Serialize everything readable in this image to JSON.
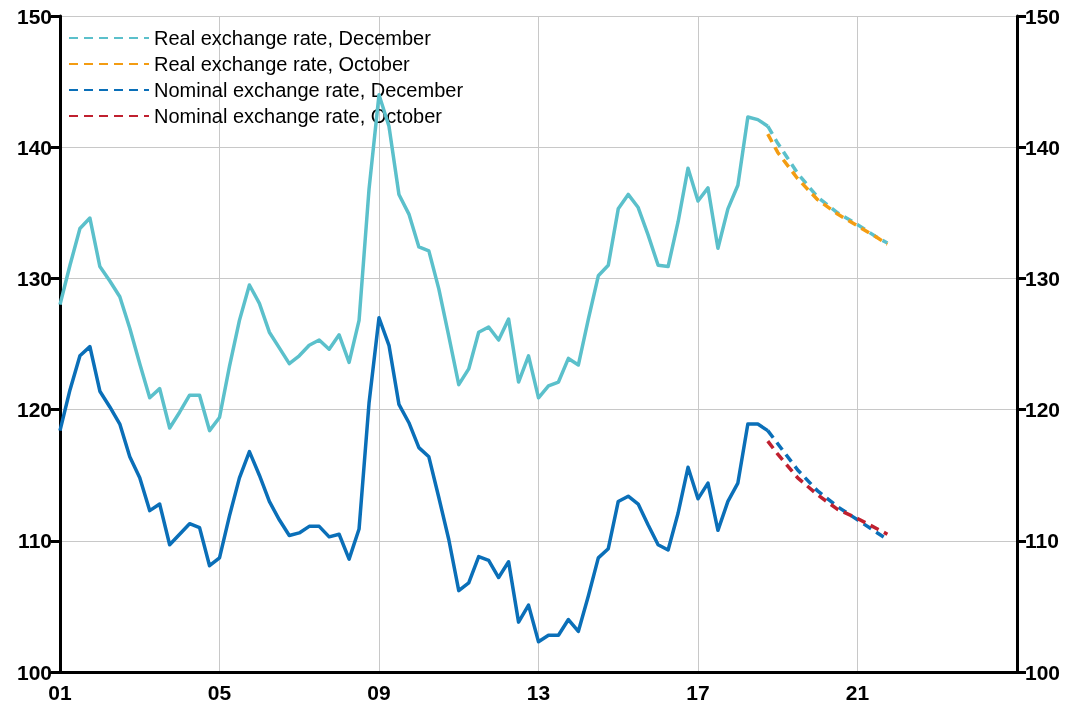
{
  "chart_data": {
    "type": "line",
    "x": [
      2001,
      2001.25,
      2001.5,
      2001.75,
      2002,
      2002.25,
      2002.5,
      2002.75,
      2003,
      2003.25,
      2003.5,
      2003.75,
      2004,
      2004.25,
      2004.5,
      2004.75,
      2005,
      2005.25,
      2005.5,
      2005.75,
      2006,
      2006.25,
      2006.5,
      2006.75,
      2007,
      2007.25,
      2007.5,
      2007.75,
      2008,
      2008.25,
      2008.5,
      2008.75,
      2009,
      2009.25,
      2009.5,
      2009.75,
      2010,
      2010.25,
      2010.5,
      2010.75,
      2011,
      2011.25,
      2011.5,
      2011.75,
      2012,
      2012.25,
      2012.5,
      2012.75,
      2013,
      2013.25,
      2013.5,
      2013.75,
      2014,
      2014.25,
      2014.5,
      2014.75,
      2015,
      2015.25,
      2015.5,
      2015.75,
      2016,
      2016.25,
      2016.5,
      2016.75,
      2017,
      2017.25,
      2017.5,
      2017.75,
      2018,
      2018.25,
      2018.5,
      2018.75
    ],
    "series": [
      {
        "color": "#5bc0cb",
        "line_style": "solid",
        "values": [
          128,
          131,
          133.8,
          134.6,
          130.9,
          129.8,
          128.6,
          126.2,
          123.5,
          120.9,
          121.6,
          118.6,
          119.8,
          121.1,
          121.1,
          118.4,
          119.4,
          123.3,
          126.8,
          129.5,
          128.1,
          125.9,
          124.7,
          123.5,
          124.1,
          124.9,
          125.3,
          124.6,
          125.7,
          123.6,
          126.8,
          136.8,
          144,
          141.6,
          136.4,
          134.9,
          132.4,
          132.1,
          129.2,
          125.6,
          121.9,
          123.1,
          125.9,
          126.3,
          125.3,
          126.9,
          122.1,
          124.1,
          120.9,
          121.8,
          122.1,
          123.9,
          123.4,
          126.9,
          130.2,
          131,
          135.3,
          136.4,
          135.4,
          133.3,
          131,
          130.9,
          134.3,
          138.4,
          135.9,
          136.9,
          132.3,
          135.3,
          137.1,
          142.3,
          142.1,
          141.6
        ]
      },
      {
        "color": "#0a6fb8",
        "line_style": "solid",
        "values": [
          118.4,
          121.5,
          124.1,
          124.8,
          121.4,
          120.2,
          118.9,
          116.4,
          114.8,
          112.3,
          112.8,
          109.7,
          110.5,
          111.3,
          111,
          108.1,
          108.7,
          111.9,
          114.8,
          116.8,
          115,
          113,
          111.6,
          110.4,
          110.6,
          111.1,
          111.1,
          110.3,
          110.5,
          108.6,
          110.9,
          120.5,
          127,
          124.9,
          120.4,
          119,
          117.1,
          116.4,
          113.3,
          110.1,
          106.2,
          106.8,
          108.8,
          108.5,
          107.2,
          108.4,
          103.8,
          105.1,
          102.3,
          102.8,
          102.8,
          104,
          103.1,
          105.8,
          108.7,
          109.4,
          113,
          113.4,
          112.8,
          111.2,
          109.7,
          109.3,
          112.1,
          115.6,
          113.2,
          114.4,
          110.8,
          113,
          114.4,
          118.9,
          118.9,
          118.4
        ]
      },
      {
        "name": "Real exchange rate, December",
        "color": "#5bc0cb",
        "line_style": "dashed",
        "x": [
          2018.75,
          2019,
          2019.5,
          2020,
          2020.5,
          2021,
          2021.5,
          2021.75
        ],
        "values": [
          141.6,
          140.3,
          138,
          136.2,
          135,
          134.1,
          133.1,
          132.7
        ]
      },
      {
        "name": "Real exchange rate, October",
        "color": "#f39c12",
        "line_style": "dashed",
        "x": [
          2018.75,
          2019,
          2019.5,
          2020,
          2020.5,
          2021,
          2021.5,
          2021.75
        ],
        "values": [
          141,
          139.6,
          137.6,
          136,
          134.9,
          134,
          133.1,
          132.6
        ]
      },
      {
        "name": "Nominal exchange rate, December",
        "color": "#0a6fb8",
        "line_style": "dashed",
        "x": [
          2018.75,
          2019,
          2019.5,
          2020,
          2020.5,
          2021,
          2021.5,
          2021.75
        ],
        "values": [
          118.4,
          117.4,
          115.4,
          113.8,
          112.6,
          111.6,
          110.6,
          110.1
        ]
      },
      {
        "name": "Nominal exchange rate, October",
        "color": "#c0202f",
        "line_style": "dashed",
        "x": [
          2018.75,
          2019,
          2019.5,
          2020,
          2020.5,
          2021,
          2021.5,
          2021.75
        ],
        "values": [
          117.6,
          116.6,
          114.8,
          113.5,
          112.4,
          111.7,
          110.9,
          110.5
        ]
      }
    ],
    "xlim": [
      2001,
      2025
    ],
    "xticks": [
      {
        "value": 2001,
        "label": "01"
      },
      {
        "value": 2005,
        "label": "05"
      },
      {
        "value": 2009,
        "label": "09"
      },
      {
        "value": 2013,
        "label": "13"
      },
      {
        "value": 2017,
        "label": "17"
      },
      {
        "value": 2021,
        "label": "21"
      }
    ],
    "ylim": [
      100,
      150
    ],
    "yticks": [
      100,
      110,
      120,
      130,
      140,
      150
    ],
    "y2lim": [
      100,
      150
    ],
    "y2ticks": [
      100,
      110,
      120,
      130,
      140,
      150
    ],
    "grid": true,
    "legend": "top left",
    "marker": "none"
  }
}
